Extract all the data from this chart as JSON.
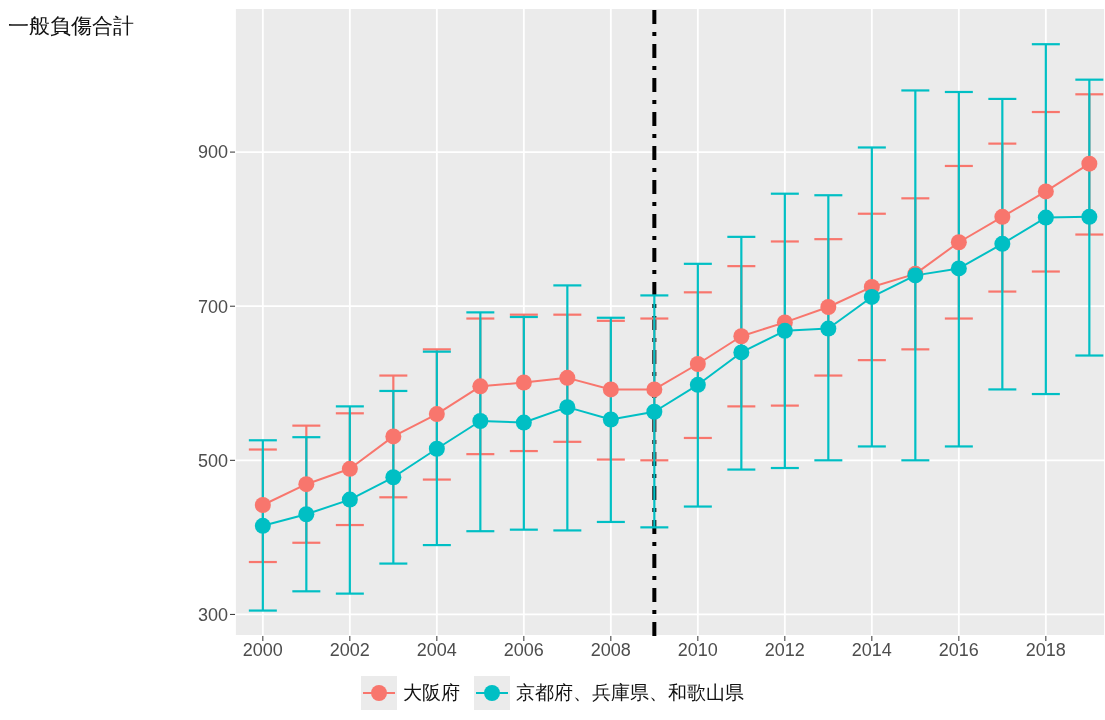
{
  "chart_data": {
    "type": "line",
    "ylabel": "一般負傷合計",
    "x": [
      2000,
      2001,
      2002,
      2003,
      2004,
      2005,
      2006,
      2007,
      2008,
      2009,
      2010,
      2011,
      2012,
      2013,
      2014,
      2015,
      2016,
      2017,
      2018,
      2019
    ],
    "series": [
      {
        "name": "大阪府",
        "color": "#f8766d",
        "values": [
          442,
          469,
          489,
          531,
          560,
          596,
          601,
          607,
          592,
          592,
          625,
          661,
          679,
          699,
          725,
          742,
          783,
          816,
          849,
          885
        ],
        "errors": [
          [
            368,
            514
          ],
          [
            393,
            545
          ],
          [
            416,
            561
          ],
          [
            452,
            610
          ],
          [
            475,
            644
          ],
          [
            508,
            684
          ],
          [
            512,
            689
          ],
          [
            524,
            689
          ],
          [
            501,
            681
          ],
          [
            500,
            684
          ],
          [
            529,
            718
          ],
          [
            570,
            752
          ],
          [
            571,
            784
          ],
          [
            610,
            787
          ],
          [
            630,
            820
          ],
          [
            644,
            840
          ],
          [
            684,
            882
          ],
          [
            719,
            911
          ],
          [
            745,
            952
          ],
          [
            793,
            975
          ]
        ]
      },
      {
        "name": "京都府、兵庫県、和歌山県",
        "color": "#00bfc4",
        "values": [
          415,
          430,
          449,
          478,
          515,
          551,
          549,
          569,
          553,
          563,
          598,
          640,
          668,
          671,
          712,
          740,
          749,
          781,
          815,
          816
        ],
        "errors": [
          [
            305,
            526
          ],
          [
            330,
            530
          ],
          [
            327,
            570
          ],
          [
            366,
            590
          ],
          [
            390,
            641
          ],
          [
            408,
            692
          ],
          [
            410,
            686
          ],
          [
            409,
            727
          ],
          [
            420,
            685
          ],
          [
            413,
            714
          ],
          [
            440,
            755
          ],
          [
            488,
            790
          ],
          [
            490,
            846
          ],
          [
            500,
            844
          ],
          [
            518,
            906
          ],
          [
            500,
            980
          ],
          [
            518,
            978
          ],
          [
            592,
            969
          ],
          [
            586,
            1040
          ],
          [
            636,
            994
          ]
        ]
      }
    ],
    "xlim": [
      1999.36,
      2019.36
    ],
    "xticks": [
      2000,
      2002,
      2004,
      2006,
      2008,
      2010,
      2012,
      2014,
      2016,
      2018
    ],
    "ylim": [
      272,
      1087
    ],
    "yticks": [
      300,
      500,
      700,
      900
    ],
    "ref_lines": [
      {
        "axis": "x",
        "value": 2009,
        "color": "#000000",
        "line_style": "dashdot"
      }
    ],
    "grid": true,
    "legend": "bottom",
    "marker": "circle",
    "line_style": "solid"
  }
}
